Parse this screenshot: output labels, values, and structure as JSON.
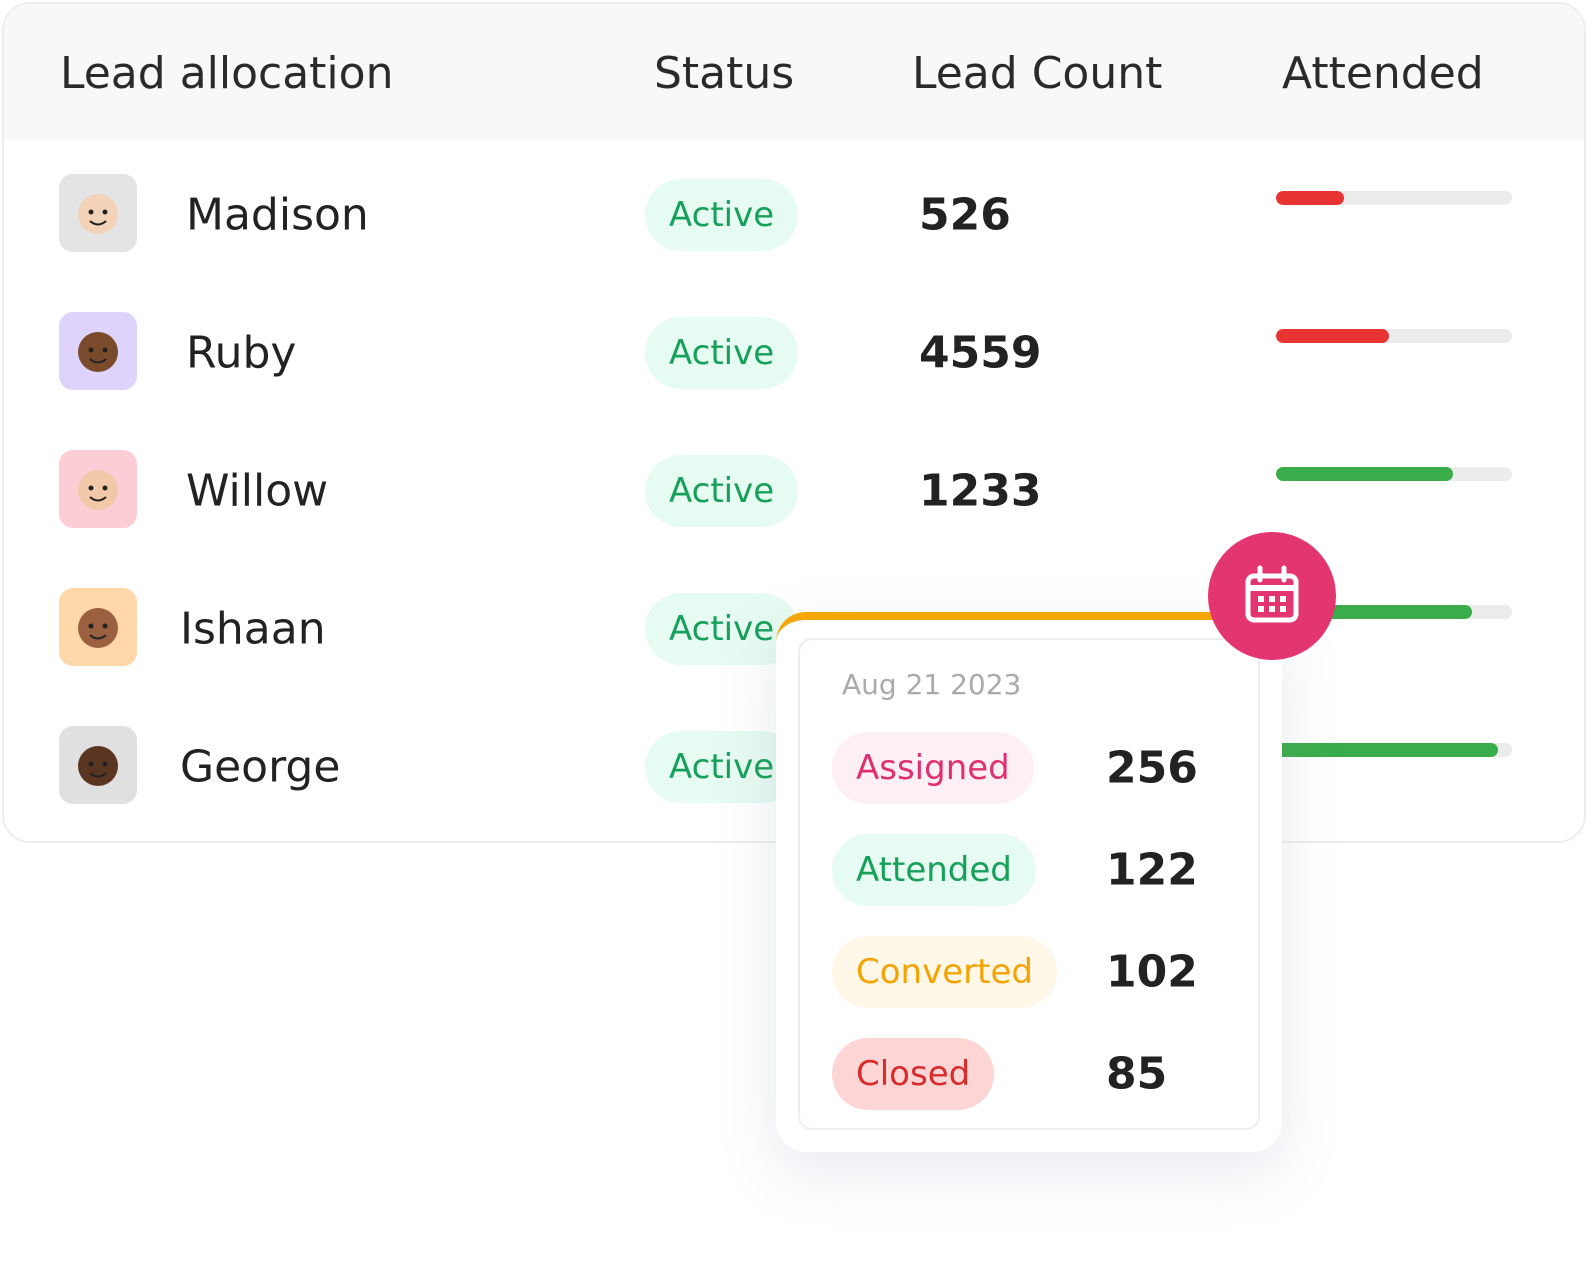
{
  "header": {
    "columns": [
      "Lead allocation",
      "Status",
      "Lead Count",
      "Attended"
    ]
  },
  "attended_range": [
    0,
    100
  ],
  "rows": [
    {
      "name": "Madison",
      "status": "Active",
      "lead_count": 526,
      "attended": 29,
      "color": "#e83333"
    },
    {
      "name": "Ruby",
      "status": "Active",
      "lead_count": 4559,
      "attended": 48,
      "color": "#e83333"
    },
    {
      "name": "Willow",
      "status": "Active",
      "lead_count": 1233,
      "attended": 75,
      "color": "#3aad4a"
    },
    {
      "name": "Ishaan",
      "status": "Active",
      "lead_count": null,
      "attended": 83,
      "color": "#3aad4a"
    },
    {
      "name": "George",
      "status": "Active",
      "lead_count": null,
      "attended": 94,
      "color": "#3aad4a"
    }
  ],
  "popover": {
    "date": "Aug 21 2023",
    "items": [
      {
        "label": "Assigned",
        "value": 256,
        "color": "#e0306f",
        "background": "#fdf0f5"
      },
      {
        "label": "Attended",
        "value": 122,
        "color": "#17a05a",
        "background": "#e6fbf1"
      },
      {
        "label": "Converted",
        "value": 102,
        "color": "#f5a300",
        "background": "#fff8e8"
      },
      {
        "label": "Closed",
        "value": 85,
        "color": "#d92b2b",
        "background": "#fdd5d5"
      }
    ]
  }
}
